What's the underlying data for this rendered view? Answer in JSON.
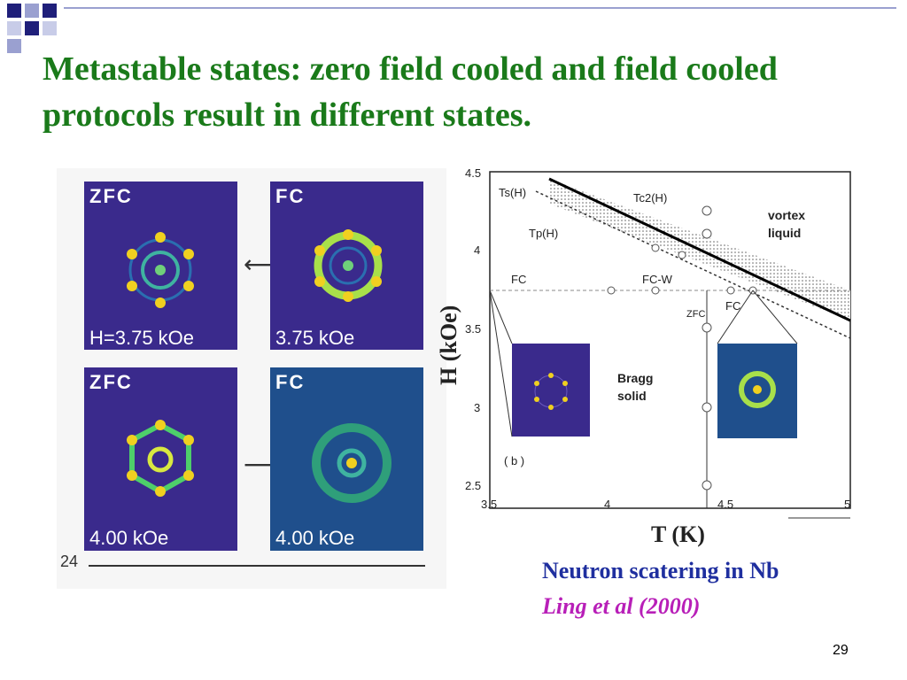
{
  "slide": {
    "title": "Metastable states: zero field cooled and field cooled protocols result in different states.",
    "page_number": "29"
  },
  "left_panels": [
    {
      "label": "ZFC",
      "field": "H=3.75 kOe"
    },
    {
      "label": "FC",
      "field": "3.75 kOe"
    },
    {
      "label": "ZFC",
      "field": "4.00 kOe"
    },
    {
      "label": "FC",
      "field": "4.00 kOe"
    }
  ],
  "left_strip": {
    "tick_label": "24"
  },
  "phase_diagram": {
    "xlabel": "T (K)",
    "ylabel": "H (kOe)",
    "x_ticks": [
      "3.5",
      "4",
      "4.5",
      "5"
    ],
    "y_ticks": [
      "4.5",
      "4",
      "3.5",
      "3",
      "2.5"
    ],
    "labels": {
      "ts": "Ts(H)",
      "tc2": "Tc2(H)",
      "tp": "Tp(H)",
      "vortex1": "vortex",
      "vortex2": "liquid",
      "fc": "FC",
      "fcw": "FC-W",
      "zfc": "ZFC",
      "fc2": "FC",
      "bragg1": "Bragg",
      "bragg2": "solid",
      "panel_b": "( b )"
    }
  },
  "caption": {
    "line1": "Neutron scatering in Nb",
    "line2": "Ling et al (2000)"
  },
  "colors": {
    "title": "#1a7a1a",
    "caption_line1": "#1f2f9f",
    "caption_line2": "#b81fb8",
    "panel_bg": "#3a2a8c"
  }
}
